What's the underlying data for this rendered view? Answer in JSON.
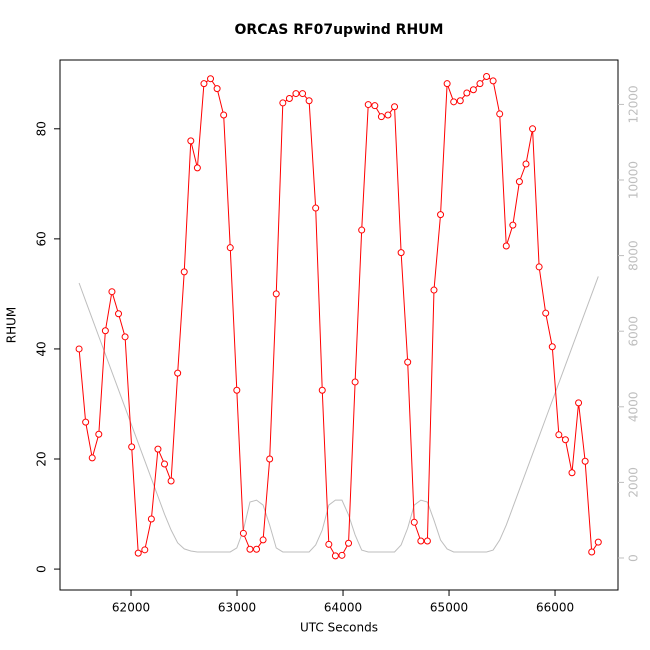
{
  "chart_data": {
    "type": "line",
    "title": "ORCAS RF07upwind RHUM",
    "x_label": "UTC Seconds",
    "y_label": "RHUM",
    "x": [
      61510,
      61572,
      61634,
      61696,
      61758,
      61820,
      61882,
      61944,
      62006,
      62068,
      62130,
      62192,
      62254,
      62316,
      62378,
      62440,
      62502,
      62564,
      62626,
      62688,
      62750,
      62812,
      62874,
      62936,
      62998,
      63060,
      63122,
      63184,
      63246,
      63308,
      63370,
      63432,
      63494,
      63556,
      63618,
      63680,
      63742,
      63804,
      63866,
      63928,
      63990,
      64052,
      64114,
      64176,
      64238,
      64300,
      64362,
      64424,
      64486,
      64548,
      64610,
      64672,
      64734,
      64796,
      64858,
      64920,
      64982,
      65044,
      65106,
      65168,
      65230,
      65292,
      65354,
      65416,
      65478,
      65540,
      65602,
      65664,
      65726,
      65788,
      65850,
      65912,
      65974,
      66036,
      66098,
      66160,
      66222,
      66284,
      66346,
      66408
    ],
    "series": [
      {
        "color": "#ff0000",
        "marker": "circle",
        "values": [
          40,
          26.7,
          20.2,
          24.5,
          43.3,
          50.4,
          46.4,
          42.2,
          22.2,
          2.9,
          3.5,
          9.1,
          21.8,
          19.1,
          16,
          35.6,
          54,
          77.8,
          72.9,
          88.2,
          89.1,
          87.3,
          82.5,
          58.4,
          32.5,
          6.5,
          3.6,
          3.6,
          5.3,
          20,
          50,
          84.7,
          85.5,
          86.4,
          86.4,
          85.1,
          65.6,
          32.5,
          4.5,
          2.4,
          2.5,
          4.7,
          34,
          61.6,
          84.4,
          84.2,
          82.2,
          82.5,
          84,
          57.5,
          37.6,
          8.5,
          5.1,
          5.1,
          50.7,
          64.4,
          88.2,
          84.9,
          85.1,
          86.5,
          87.1,
          88.2,
          89.5,
          88.7,
          82.7,
          58.7,
          62.5,
          70.4,
          73.6,
          80,
          54.9,
          46.5,
          40.4,
          24.4,
          23.5,
          17.5,
          30.2,
          19.6,
          3.1,
          4.9
        ]
      },
      {
        "color": "#bebebe",
        "axis": "y2",
        "values": [
          7275,
          6800,
          6330,
          5860,
          5390,
          4920,
          4450,
          3980,
          3510,
          3040,
          2570,
          2100,
          1630,
          1160,
          740,
          400,
          240,
          185,
          160,
          160,
          160,
          160,
          160,
          160,
          265,
          740,
          1480,
          1530,
          1400,
          870,
          265,
          160,
          160,
          160,
          160,
          160,
          345,
          740,
          1400,
          1530,
          1530,
          1140,
          610,
          210,
          160,
          160,
          160,
          160,
          160,
          345,
          790,
          1400,
          1530,
          1480,
          1000,
          475,
          240,
          160,
          160,
          160,
          160,
          160,
          160,
          210,
          475,
          870,
          1340,
          1810,
          2280,
          2750,
          3220,
          3690,
          4160,
          4630,
          5100,
          5570,
          6040,
          6510,
          6980,
          7450
        ]
      }
    ],
    "xlim": [
      61330,
      66594
    ],
    "xticks": [
      62000,
      63000,
      64000,
      65000,
      66000
    ],
    "ylim": [
      -3.8,
      92.5
    ],
    "yticks": [
      0,
      20,
      40,
      60,
      80
    ],
    "y2lim": [
      -847,
      13175
    ],
    "y2ticks": [
      0,
      2000,
      4000,
      6000,
      8000,
      10000,
      12000
    ],
    "y2tick_color": "#bebebe"
  }
}
